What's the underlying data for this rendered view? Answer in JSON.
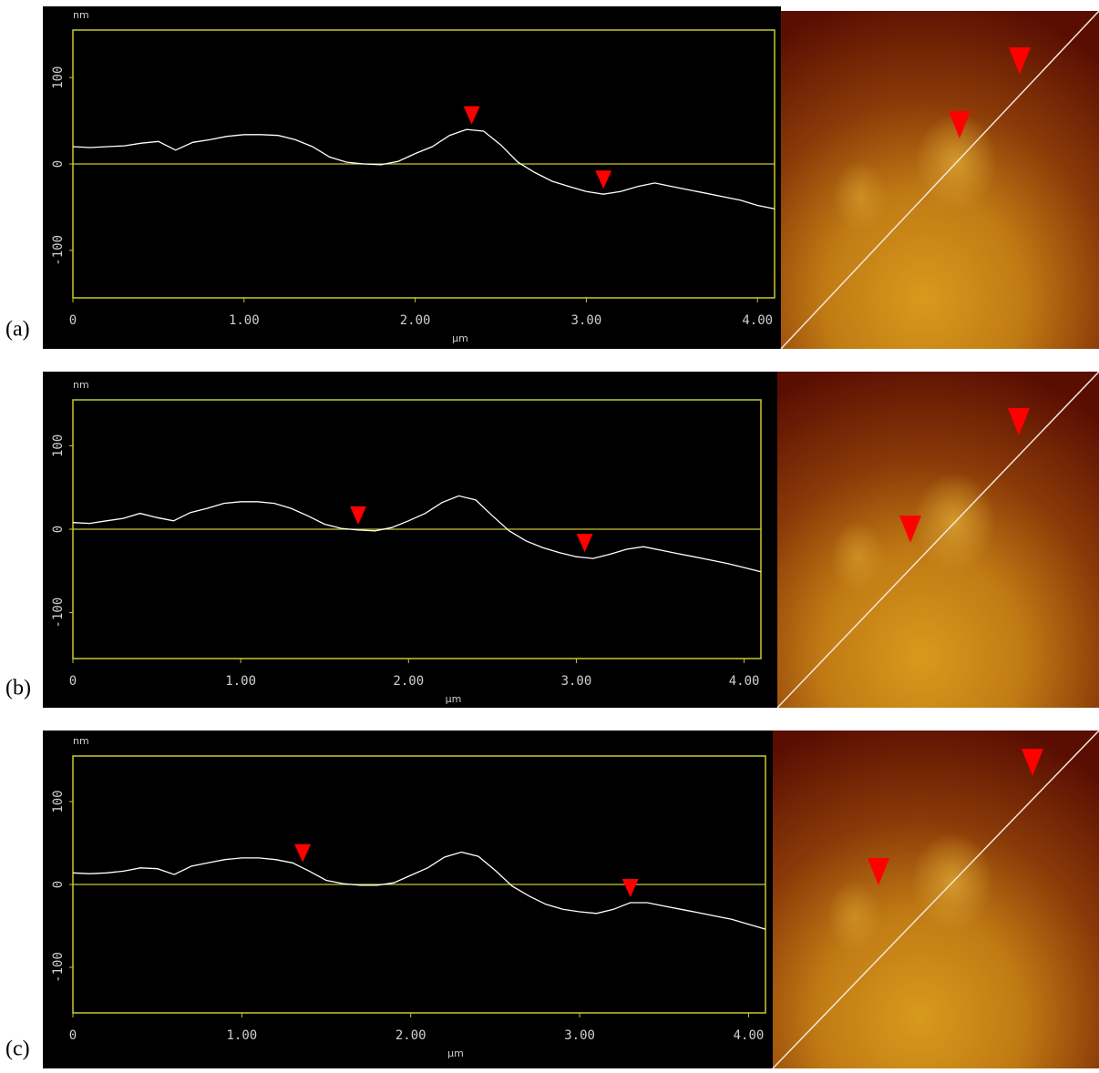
{
  "chart_data": [
    {
      "type": "line",
      "panel_label": "(a)",
      "x_label": "µm",
      "y_label": "nm",
      "x": [
        0,
        0.1,
        0.2,
        0.3,
        0.4,
        0.5,
        0.6,
        0.7,
        0.8,
        0.9,
        1.0,
        1.1,
        1.2,
        1.3,
        1.4,
        1.5,
        1.6,
        1.7,
        1.8,
        1.9,
        2.0,
        2.1,
        2.2,
        2.3,
        2.4,
        2.5,
        2.6,
        2.7,
        2.8,
        2.9,
        3.0,
        3.1,
        3.2,
        3.3,
        3.4,
        3.5,
        3.6,
        3.7,
        3.8,
        3.9,
        4.0,
        4.1
      ],
      "values": [
        20,
        19,
        20,
        21,
        24,
        26,
        16,
        25,
        28,
        32,
        34,
        34,
        33,
        28,
        20,
        8,
        2,
        0,
        -1,
        3,
        12,
        20,
        33,
        40,
        38,
        22,
        2,
        -10,
        -20,
        -26,
        -32,
        -35,
        -32,
        -26,
        -22,
        -26,
        -30,
        -34,
        -38,
        -42,
        -48,
        -52
      ],
      "color": "#ffffff",
      "frame_color": "#c8c832",
      "zero_line": true,
      "markers": {
        "x": [
          2.33,
          3.1
        ],
        "color": "#ff0000"
      },
      "xlim": [
        0,
        4.1
      ],
      "ylim": [
        -155,
        155
      ],
      "xticks": [
        0,
        {
          "value": 1,
          "label": "1.00"
        },
        {
          "value": 2,
          "label": "2.00"
        },
        {
          "value": 3,
          "label": "3.00"
        },
        {
          "value": 4,
          "label": "4.00"
        }
      ],
      "yticks": [
        100,
        0,
        -100
      ]
    },
    {
      "type": "line",
      "panel_label": "(b)",
      "x_label": "µm",
      "y_label": "nm",
      "x": [
        0,
        0.1,
        0.2,
        0.3,
        0.4,
        0.5,
        0.6,
        0.7,
        0.8,
        0.9,
        1.0,
        1.1,
        1.2,
        1.3,
        1.4,
        1.5,
        1.6,
        1.7,
        1.8,
        1.9,
        2.0,
        2.1,
        2.2,
        2.3,
        2.4,
        2.5,
        2.6,
        2.7,
        2.8,
        2.9,
        3.0,
        3.1,
        3.2,
        3.3,
        3.4,
        3.5,
        3.6,
        3.7,
        3.8,
        3.9,
        4.0,
        4.1
      ],
      "values": [
        8,
        7,
        10,
        13,
        19,
        14,
        10,
        20,
        25,
        31,
        33,
        33,
        31,
        25,
        16,
        6,
        1,
        -1,
        -2,
        2,
        10,
        19,
        32,
        40,
        35,
        16,
        -2,
        -14,
        -22,
        -28,
        -33,
        -35,
        -30,
        -24,
        -21,
        -25,
        -29,
        -33,
        -37,
        -41,
        -46,
        -51
      ],
      "color": "#ffffff",
      "frame_color": "#c8c832",
      "zero_line": true,
      "markers": {
        "x": [
          1.7,
          3.05
        ],
        "color": "#ff0000"
      },
      "xlim": [
        0,
        4.1
      ],
      "ylim": [
        -155,
        155
      ],
      "xticks": [
        0,
        {
          "value": 1,
          "label": "1.00"
        },
        {
          "value": 2,
          "label": "2.00"
        },
        {
          "value": 3,
          "label": "3.00"
        },
        {
          "value": 4,
          "label": "4.00"
        }
      ],
      "yticks": [
        100,
        0,
        -100
      ]
    },
    {
      "type": "line",
      "panel_label": "(c)",
      "x_label": "µm",
      "y_label": "nm",
      "x": [
        0,
        0.1,
        0.2,
        0.3,
        0.4,
        0.5,
        0.6,
        0.7,
        0.8,
        0.9,
        1.0,
        1.1,
        1.2,
        1.3,
        1.4,
        1.5,
        1.6,
        1.7,
        1.8,
        1.9,
        2.0,
        2.1,
        2.2,
        2.3,
        2.4,
        2.5,
        2.6,
        2.7,
        2.8,
        2.9,
        3.0,
        3.1,
        3.2,
        3.3,
        3.4,
        3.5,
        3.6,
        3.7,
        3.8,
        3.9,
        4.0,
        4.1
      ],
      "values": [
        14,
        13,
        14,
        16,
        20,
        19,
        12,
        22,
        26,
        30,
        32,
        32,
        30,
        26,
        16,
        5,
        1,
        -1,
        -1,
        2,
        11,
        20,
        33,
        39,
        34,
        17,
        -2,
        -14,
        -24,
        -30,
        -33,
        -35,
        -30,
        -22,
        -22,
        -26,
        -30,
        -34,
        -38,
        -42,
        -48,
        -54
      ],
      "color": "#ffffff",
      "frame_color": "#c8c832",
      "zero_line": true,
      "markers": {
        "x": [
          1.36,
          3.3
        ],
        "color": "#ff0000"
      },
      "xlim": [
        0,
        4.1
      ],
      "ylim": [
        -155,
        155
      ],
      "xticks": [
        0,
        {
          "value": 1,
          "label": "1.00"
        },
        {
          "value": 2,
          "label": "2.00"
        },
        {
          "value": 3,
          "label": "3.00"
        },
        {
          "value": 4,
          "label": "4.00"
        }
      ],
      "yticks": [
        100,
        0,
        -100
      ]
    }
  ]
}
